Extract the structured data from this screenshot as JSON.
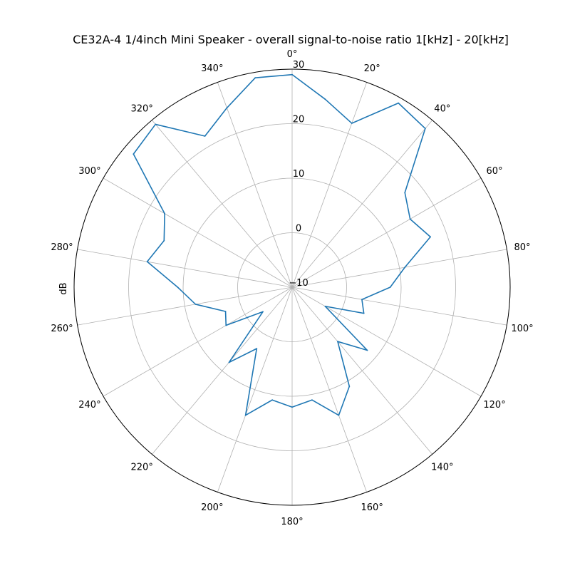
{
  "chart_data": {
    "type": "line",
    "projection": "polar",
    "title": "CE32A-4 1/4inch Mini Speaker - overall signal-to-noise ratio 1[kHz] - 20[kHz]",
    "ylabel": "dB",
    "theta_zero": "top",
    "theta_direction": "clockwise",
    "rlim": [
      -10,
      30
    ],
    "r_ticks": [
      -10,
      0,
      10,
      20,
      30
    ],
    "r_tick_labels": [
      "−10",
      "0",
      "10",
      "20",
      "30"
    ],
    "theta_ticks": [
      0,
      20,
      40,
      60,
      80,
      100,
      120,
      140,
      160,
      180,
      200,
      220,
      240,
      260,
      280,
      300,
      320,
      340
    ],
    "theta_tick_labels": [
      "0°",
      "20°",
      "40°",
      "60°",
      "80°",
      "100°",
      "120°",
      "140°",
      "160°",
      "180°",
      "200°",
      "220°",
      "240°",
      "260°",
      "280°",
      "300°",
      "320°",
      "340°"
    ],
    "grid": true,
    "series": [
      {
        "color": "#1f77b4",
        "angles": [
          0,
          10,
          20,
          30,
          40,
          50,
          60,
          70,
          80,
          90,
          100,
          110,
          120,
          130,
          140,
          150,
          160,
          170,
          180,
          190,
          200,
          210,
          220,
          230,
          240,
          250,
          260,
          270,
          280,
          290,
          300,
          310,
          320,
          330,
          340,
          350
        ],
        "values": [
          29,
          25,
          22,
          29,
          28,
          17,
          15,
          17,
          11,
          8,
          3,
          4,
          -3,
          8,
          3,
          11,
          15,
          11,
          12,
          11,
          15,
          3,
          8,
          -3,
          4,
          3,
          8,
          11,
          17,
          15,
          17,
          28,
          29,
          22,
          25,
          29
        ]
      }
    ]
  }
}
